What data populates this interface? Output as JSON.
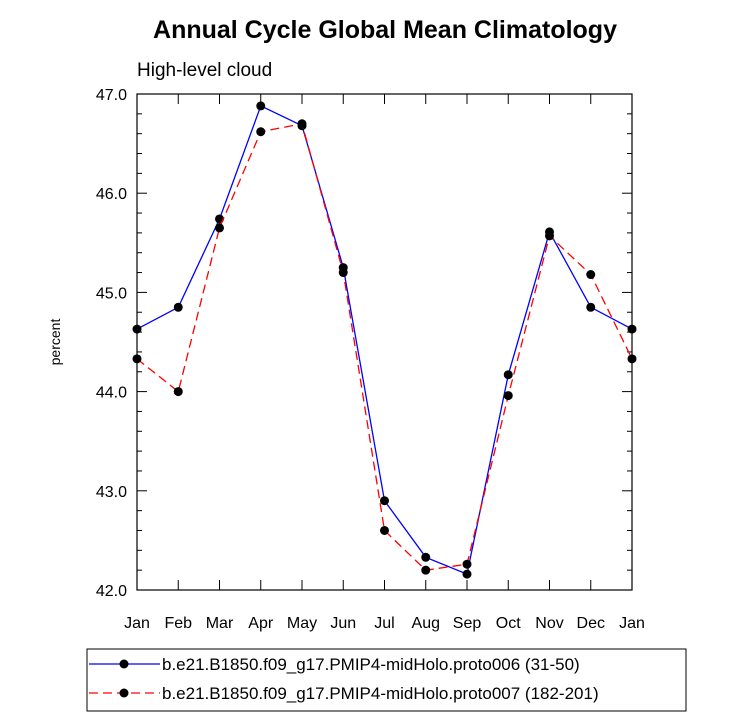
{
  "chart_data": {
    "type": "line",
    "title": "Annual Cycle Global Mean Climatology",
    "subtitle": "High-level cloud",
    "xlabel": "",
    "ylabel": "percent",
    "categories": [
      "Jan",
      "Feb",
      "Mar",
      "Apr",
      "May",
      "Jun",
      "Jul",
      "Aug",
      "Sep",
      "Oct",
      "Nov",
      "Dec",
      "Jan"
    ],
    "ylim": [
      42.0,
      47.0
    ],
    "yticks": [
      "42.0",
      "43.0",
      "44.0",
      "45.0",
      "46.0",
      "47.0"
    ],
    "grid": false,
    "legend_position": "bottom",
    "series": [
      {
        "name": "b.e21.B1850.f09_g17.PMIP4-midHolo.proto006 (31-50)",
        "color": "#0000ff",
        "line_style": "solid",
        "values": [
          44.63,
          44.85,
          45.74,
          46.88,
          46.68,
          45.25,
          42.9,
          42.33,
          42.16,
          44.17,
          45.61,
          44.85,
          44.63
        ]
      },
      {
        "name": "b.e21.B1850.f09_g17.PMIP4-midHolo.proto007 (182-201)",
        "color": "#ff0000",
        "line_style": "dashed",
        "values": [
          44.33,
          44.0,
          45.65,
          46.62,
          46.7,
          45.2,
          42.6,
          42.2,
          42.26,
          43.96,
          45.57,
          45.18,
          44.33
        ]
      }
    ]
  }
}
